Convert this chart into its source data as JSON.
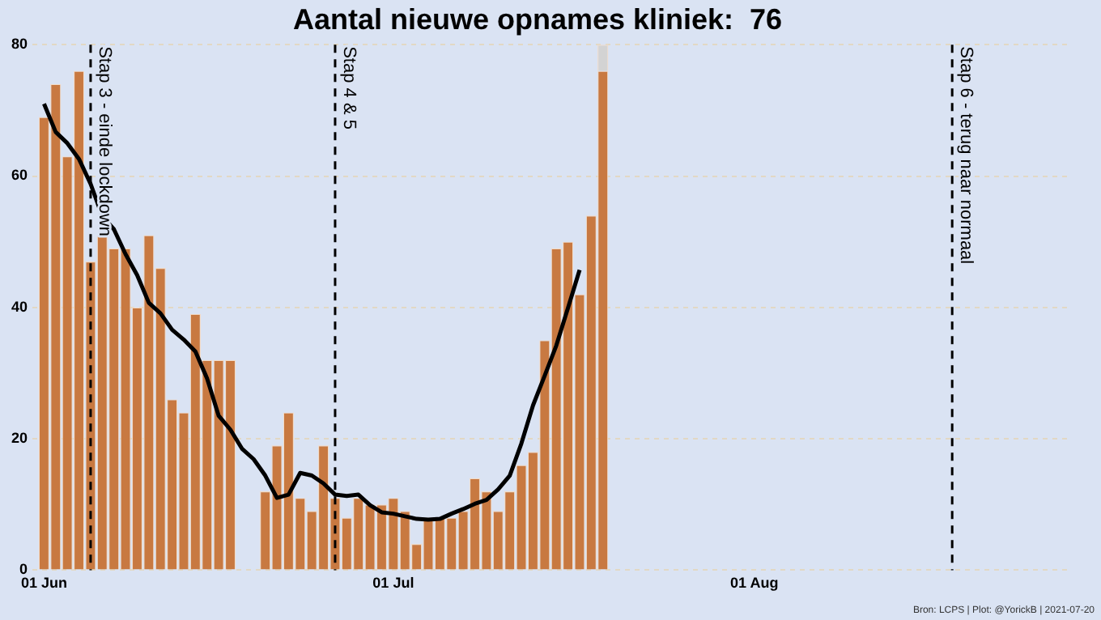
{
  "chart_data": {
    "type": "bar",
    "title": "Aantal nieuwe opnames kliniek:  76",
    "stacked": true,
    "legend": false,
    "grid": "y",
    "x": [
      "2021-06-01",
      "2021-06-02",
      "2021-06-03",
      "2021-06-04",
      "2021-06-05",
      "2021-06-06",
      "2021-06-07",
      "2021-06-08",
      "2021-06-09",
      "2021-06-10",
      "2021-06-11",
      "2021-06-12",
      "2021-06-13",
      "2021-06-14",
      "2021-06-15",
      "2021-06-16",
      "2021-06-17",
      "2021-06-18",
      "2021-06-19",
      "2021-06-20",
      "2021-06-21",
      "2021-06-22",
      "2021-06-23",
      "2021-06-24",
      "2021-06-25",
      "2021-06-26",
      "2021-06-27",
      "2021-06-28",
      "2021-06-29",
      "2021-06-30",
      "2021-07-01",
      "2021-07-02",
      "2021-07-03",
      "2021-07-04",
      "2021-07-05",
      "2021-07-06",
      "2021-07-07",
      "2021-07-08",
      "2021-07-09",
      "2021-07-10",
      "2021-07-11",
      "2021-07-12",
      "2021-07-13",
      "2021-07-14",
      "2021-07-15",
      "2021-07-16",
      "2021-07-17",
      "2021-07-18",
      "2021-07-19"
    ],
    "series": [
      {
        "color": "#c87941",
        "values": [
          69,
          74,
          63,
          76,
          47,
          51,
          49,
          49,
          40,
          51,
          46,
          26,
          24,
          39,
          32,
          32,
          32,
          null,
          null,
          12,
          19,
          24,
          11,
          9,
          19,
          11,
          8,
          11,
          10,
          10,
          11,
          9,
          4,
          8,
          8,
          8,
          9,
          14,
          12,
          9,
          12,
          16,
          18,
          35,
          49,
          50,
          42,
          54,
          76
        ]
      },
      {
        "color": "#d3d3d3",
        "values": [
          null,
          null,
          null,
          null,
          null,
          null,
          null,
          null,
          null,
          null,
          null,
          null,
          null,
          null,
          null,
          null,
          null,
          null,
          null,
          null,
          null,
          null,
          null,
          null,
          null,
          null,
          null,
          null,
          null,
          null,
          null,
          null,
          null,
          null,
          null,
          null,
          null,
          null,
          null,
          null,
          null,
          null,
          null,
          null,
          null,
          null,
          null,
          null,
          4
        ]
      },
      {
        "type": "line",
        "color": "#000000",
        "line_style": "solid",
        "marker": "none",
        "x": [
          "2021-06-01",
          "2021-06-02",
          "2021-06-03",
          "2021-06-04",
          "2021-06-05",
          "2021-06-06",
          "2021-06-07",
          "2021-06-08",
          "2021-06-09",
          "2021-06-10",
          "2021-06-11",
          "2021-06-12",
          "2021-06-13",
          "2021-06-14",
          "2021-06-15",
          "2021-06-16",
          "2021-06-17",
          "2021-06-18",
          "2021-06-19",
          "2021-06-20",
          "2021-06-21",
          "2021-06-22",
          "2021-06-23",
          "2021-06-24",
          "2021-06-25",
          "2021-06-26",
          "2021-06-27",
          "2021-06-28",
          "2021-06-29",
          "2021-06-30",
          "2021-07-01",
          "2021-07-02",
          "2021-07-03",
          "2021-07-04",
          "2021-07-05",
          "2021-07-06",
          "2021-07-07",
          "2021-07-08",
          "2021-07-09",
          "2021-07-10",
          "2021-07-11",
          "2021-07-12",
          "2021-07-13",
          "2021-07-14",
          "2021-07-15",
          "2021-07-16",
          "2021-07-17"
        ],
        "values": [
          71,
          66.7,
          65,
          62.6,
          58.8,
          53.9,
          51.9,
          48.1,
          44.9,
          40.7,
          39.1,
          36.6,
          35.1,
          33.3,
          29.2,
          23.5,
          21.4,
          18.5,
          16.9,
          14.4,
          11,
          11.5,
          14.8,
          14.4,
          13.2,
          11.5,
          11.3,
          11.5,
          9.9,
          8.8,
          8.6,
          8.2,
          7.8,
          7.7,
          7.8,
          8.6,
          9.3,
          10.1,
          10.7,
          12.3,
          14.4,
          19.3,
          25.1,
          29.6,
          34.2,
          39.9,
          45.7
        ]
      }
    ],
    "xlim": [
      "2021-05-31",
      "2021-08-28"
    ],
    "xticks": [
      {
        "value": "2021-06-01",
        "label": "01 Jun"
      },
      {
        "value": "2021-07-01",
        "label": "01 Jul"
      },
      {
        "value": "2021-08-01",
        "label": "01 Aug"
      }
    ],
    "ylim": [
      0,
      80
    ],
    "yticks": [
      0,
      20,
      40,
      60,
      80
    ],
    "ref_lines": [
      {
        "axis": "x",
        "value": "2021-06-05",
        "label": "Stap 3 - einde lockdown",
        "color": "#000000",
        "line_style": "dashed"
      },
      {
        "axis": "x",
        "value": "2021-06-26",
        "label": "Stap 4 & 5",
        "color": "#000000",
        "line_style": "dashed"
      },
      {
        "axis": "x",
        "value": "2021-08-18",
        "label": "Stap 6 - terug naar normaal",
        "color": "#000000",
        "line_style": "dashed"
      }
    ],
    "annotations": [
      "Bron: LCPS | Plot: @YorickB | 2021-07-20"
    ]
  }
}
